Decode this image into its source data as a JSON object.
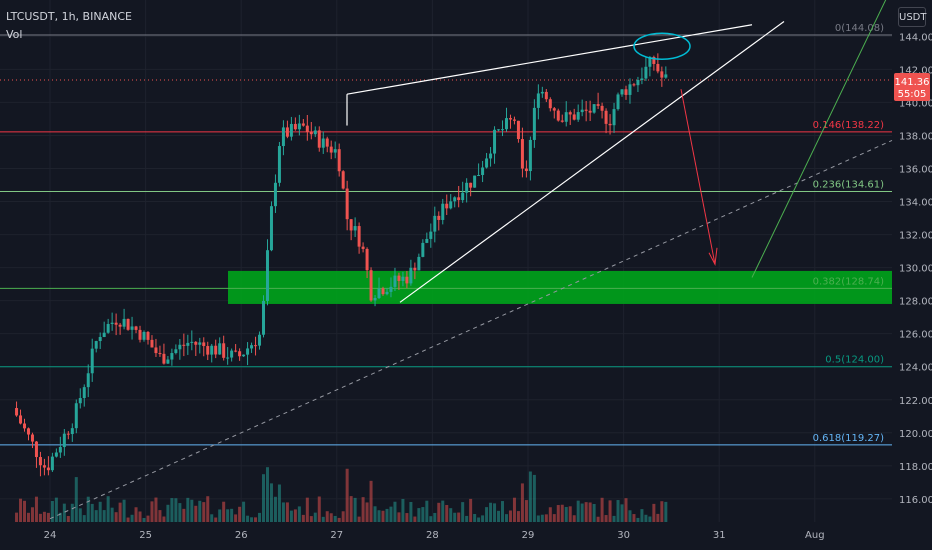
{
  "header": {
    "symbol": "LTCUSDT, 1h, BINANCE",
    "volume_label": "Vol",
    "currency": "USDT"
  },
  "price_tag": {
    "price": "141.36",
    "countdown": "55:05"
  },
  "colors": {
    "background": "#131722",
    "up": "#26a69a",
    "down": "#ef5350",
    "zone": "#00a21b",
    "axis_text": "#b2b5be",
    "grid": "#1e222d"
  },
  "chart_data": {
    "type": "candlestick",
    "title": "",
    "ylim": [
      114.6,
      146.2
    ],
    "y_ticks": [
      "116.00",
      "118.00",
      "120.00",
      "122.00",
      "124.00",
      "126.00",
      "128.00",
      "130.00",
      "132.00",
      "134.00",
      "136.00",
      "138.00",
      "140.00",
      "142.00",
      "144.00"
    ],
    "x_ticks": [
      "24",
      "25",
      "26",
      "27",
      "28",
      "29",
      "30",
      "31",
      "Aug"
    ],
    "x_positions": [
      0,
      1,
      2,
      3,
      4,
      5,
      6,
      7,
      8
    ],
    "candles_anchor": [
      {
        "day": -0.35,
        "price": 121.5
      },
      {
        "day": 0.0,
        "price": 117.8
      },
      {
        "day": 0.3,
        "price": 121.0
      },
      {
        "day": 0.55,
        "price": 126.0
      },
      {
        "day": 0.75,
        "price": 127.0
      },
      {
        "day": 1.0,
        "price": 126.0
      },
      {
        "day": 1.2,
        "price": 124.5
      },
      {
        "day": 1.5,
        "price": 125.5
      },
      {
        "day": 1.8,
        "price": 125.0
      },
      {
        "day": 2.0,
        "price": 124.5
      },
      {
        "day": 2.25,
        "price": 126.0
      },
      {
        "day": 2.35,
        "price": 133.0
      },
      {
        "day": 2.45,
        "price": 138.0
      },
      {
        "day": 2.7,
        "price": 138.5
      },
      {
        "day": 2.9,
        "price": 137.5
      },
      {
        "day": 3.05,
        "price": 137.0
      },
      {
        "day": 3.15,
        "price": 133.0
      },
      {
        "day": 3.3,
        "price": 131.5
      },
      {
        "day": 3.4,
        "price": 128.5
      },
      {
        "day": 3.6,
        "price": 129.0
      },
      {
        "day": 3.8,
        "price": 129.5
      },
      {
        "day": 4.0,
        "price": 132.0
      },
      {
        "day": 4.2,
        "price": 134.0
      },
      {
        "day": 4.5,
        "price": 135.5
      },
      {
        "day": 4.7,
        "price": 138.0
      },
      {
        "day": 4.9,
        "price": 139.0
      },
      {
        "day": 5.0,
        "price": 135.0
      },
      {
        "day": 5.15,
        "price": 141.0
      },
      {
        "day": 5.4,
        "price": 139.0
      },
      {
        "day": 5.7,
        "price": 139.5
      },
      {
        "day": 5.9,
        "price": 139.0
      },
      {
        "day": 6.0,
        "price": 140.5
      },
      {
        "day": 6.2,
        "price": 141.5
      },
      {
        "day": 6.35,
        "price": 142.5
      },
      {
        "day": 6.45,
        "price": 141.4
      }
    ],
    "fib_levels": [
      {
        "label": "0(144.08)",
        "price": 144.08,
        "color": "#787b86"
      },
      {
        "label": "0.146(138.22)",
        "price": 138.22,
        "color": "#f23645"
      },
      {
        "label": "0.236(134.61)",
        "price": 134.61,
        "color": "#81c784"
      },
      {
        "label": "0.382(128.74)",
        "price": 128.74,
        "color": "#4caf50"
      },
      {
        "label": "0.5(124.00)",
        "price": 124.0,
        "color": "#089981"
      },
      {
        "label": "0.618(119.27)",
        "price": 119.27,
        "color": "#64b5f6"
      }
    ],
    "zone": {
      "low": 127.8,
      "high": 129.8
    }
  }
}
